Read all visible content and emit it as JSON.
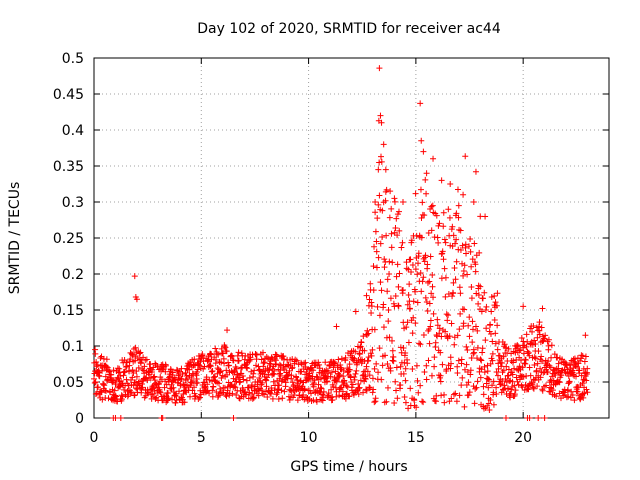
{
  "chart_data": {
    "type": "scatter",
    "title": "Day 102 of 2020, SRMTID for receiver ac44",
    "xlabel": "GPS time / hours",
    "ylabel": "SRMTID / TECUs",
    "xlim": [
      0,
      24
    ],
    "ylim": [
      0,
      0.5
    ],
    "xticks": [
      0,
      5,
      10,
      15,
      20
    ],
    "xtick_labels": [
      "0",
      "5",
      "10",
      "15",
      "20"
    ],
    "yticks": [
      0,
      0.05,
      0.1,
      0.15,
      0.2,
      0.25,
      0.3,
      0.35,
      0.4,
      0.45,
      0.5
    ],
    "ytick_labels": [
      "0",
      "0.05",
      "0.1",
      "0.15",
      "0.2",
      "0.25",
      "0.3",
      "0.35",
      "0.4",
      "0.45",
      "0.5"
    ],
    "grid": true,
    "marker": "+",
    "color": "#ff0000",
    "series": [
      {
        "name": "ac44",
        "x_range": [
          0,
          23
        ],
        "x_step_hours": 0.0125,
        "baseline_profile": [
          [
            0,
            0.06
          ],
          [
            1.0,
            0.048
          ],
          [
            2.0,
            0.065
          ],
          [
            3.0,
            0.05
          ],
          [
            4.0,
            0.045
          ],
          [
            5.0,
            0.058
          ],
          [
            6.0,
            0.066
          ],
          [
            7.0,
            0.058
          ],
          [
            8.0,
            0.06
          ],
          [
            9.0,
            0.055
          ],
          [
            10.0,
            0.05
          ],
          [
            11.0,
            0.05
          ],
          [
            12.0,
            0.06
          ],
          [
            12.8,
            0.08
          ],
          [
            13.3,
            0.2
          ],
          [
            14.0,
            0.16
          ],
          [
            14.5,
            0.12
          ],
          [
            15.0,
            0.14
          ],
          [
            15.5,
            0.17
          ],
          [
            16.0,
            0.16
          ],
          [
            17.0,
            0.15
          ],
          [
            18.0,
            0.12
          ],
          [
            18.6,
            0.1
          ],
          [
            19.0,
            0.07
          ],
          [
            19.5,
            0.06
          ],
          [
            20.0,
            0.08
          ],
          [
            20.7,
            0.09
          ],
          [
            21.5,
            0.06
          ],
          [
            22.0,
            0.05
          ],
          [
            23.0,
            0.06
          ]
        ],
        "notable_points": [
          {
            "x": 0.05,
            "y": 0.095
          },
          {
            "x": 1.9,
            "y": 0.197
          },
          {
            "x": 1.95,
            "y": 0.168
          },
          {
            "x": 2.0,
            "y": 0.165
          },
          {
            "x": 6.2,
            "y": 0.122
          },
          {
            "x": 11.3,
            "y": 0.127
          },
          {
            "x": 12.2,
            "y": 0.148
          },
          {
            "x": 12.7,
            "y": 0.17
          },
          {
            "x": 13.1,
            "y": 0.3
          },
          {
            "x": 13.25,
            "y": 0.345
          },
          {
            "x": 13.3,
            "y": 0.486
          },
          {
            "x": 13.35,
            "y": 0.42
          },
          {
            "x": 13.4,
            "y": 0.41
          },
          {
            "x": 13.5,
            "y": 0.38
          },
          {
            "x": 13.6,
            "y": 0.345
          },
          {
            "x": 14.0,
            "y": 0.305
          },
          {
            "x": 14.4,
            "y": 0.3
          },
          {
            "x": 14.7,
            "y": 0.22
          },
          {
            "x": 15.2,
            "y": 0.437
          },
          {
            "x": 15.25,
            "y": 0.385
          },
          {
            "x": 15.35,
            "y": 0.37
          },
          {
            "x": 15.5,
            "y": 0.34
          },
          {
            "x": 15.8,
            "y": 0.36
          },
          {
            "x": 16.2,
            "y": 0.33
          },
          {
            "x": 16.6,
            "y": 0.325
          },
          {
            "x": 17.0,
            "y": 0.295
          },
          {
            "x": 17.2,
            "y": 0.31
          },
          {
            "x": 17.7,
            "y": 0.3
          },
          {
            "x": 17.8,
            "y": 0.342
          },
          {
            "x": 18.0,
            "y": 0.28
          },
          {
            "x": 20.0,
            "y": 0.155
          },
          {
            "x": 20.9,
            "y": 0.152
          },
          {
            "x": 22.9,
            "y": 0.115
          },
          {
            "x": 0.9,
            "y": 0.0
          },
          {
            "x": 1.0,
            "y": 0.0
          },
          {
            "x": 1.25,
            "y": 0.0
          },
          {
            "x": 3.15,
            "y": 0.0
          },
          {
            "x": 3.2,
            "y": 0.0
          },
          {
            "x": 6.5,
            "y": 0.0
          },
          {
            "x": 19.2,
            "y": 0.0
          },
          {
            "x": 20.2,
            "y": 0.0
          },
          {
            "x": 20.3,
            "y": 0.0
          },
          {
            "x": 20.7,
            "y": 0.0
          },
          {
            "x": 21.0,
            "y": 0.0
          }
        ]
      }
    ]
  }
}
